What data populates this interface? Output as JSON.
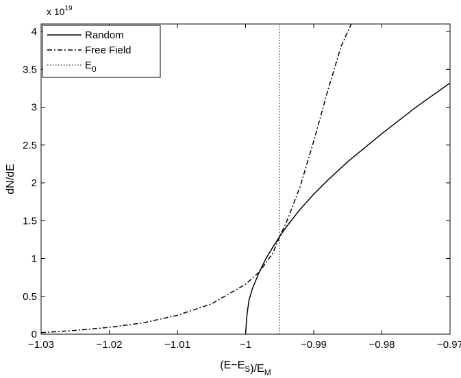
{
  "chart_data": {
    "type": "line",
    "title": "",
    "xlabel": "(E−E_S)/E_M",
    "ylabel": "dN/dE",
    "y_multiplier_base": "x 10",
    "y_multiplier_exponent": "19",
    "xlim": [
      -1.03,
      -0.97
    ],
    "ylim": [
      0,
      4.1
    ],
    "x_ticks": [
      -1.03,
      -1.02,
      -1.01,
      -1.0,
      -0.99,
      -0.98,
      -0.97
    ],
    "x_tick_labels": [
      "−1.03",
      "−1.02",
      "−1.01",
      "−1",
      "−0.99",
      "−0.98",
      "−0.97"
    ],
    "y_ticks": [
      0,
      0.5,
      1,
      1.5,
      2,
      2.5,
      3,
      3.5,
      4
    ],
    "y_tick_labels": [
      "0",
      "0.5",
      "1",
      "1.5",
      "2",
      "2.5",
      "3",
      "3.5",
      "4"
    ],
    "grid": false,
    "legend_position": "top-left",
    "series": [
      {
        "name": "Random",
        "style": "solid",
        "color": "#000000",
        "x": [
          -1.0,
          -0.9998,
          -0.9995,
          -0.999,
          -0.998,
          -0.997,
          -0.996,
          -0.995,
          -0.994,
          -0.992,
          -0.99,
          -0.988,
          -0.985,
          -0.98,
          -0.975,
          -0.97
        ],
        "y": [
          0,
          0.25,
          0.45,
          0.6,
          0.82,
          1.0,
          1.15,
          1.29,
          1.42,
          1.65,
          1.85,
          2.03,
          2.28,
          2.65,
          3.0,
          3.32
        ]
      },
      {
        "name": "Free Field",
        "style": "dashdot",
        "color": "#000000",
        "x": [
          -1.03,
          -1.025,
          -1.02,
          -1.015,
          -1.01,
          -1.005,
          -1.0,
          -0.998,
          -0.996,
          -0.995,
          -0.994,
          -0.992,
          -0.99,
          -0.988,
          -0.986,
          -0.9845
        ],
        "y": [
          0.02,
          0.05,
          0.09,
          0.15,
          0.25,
          0.4,
          0.66,
          0.82,
          1.07,
          1.29,
          1.48,
          1.95,
          2.55,
          3.2,
          3.8,
          4.1
        ]
      },
      {
        "name": "E_0",
        "style": "dotted",
        "color": "#000000",
        "x": [
          -0.995,
          -0.995
        ],
        "y": [
          0,
          4.1
        ]
      }
    ]
  }
}
